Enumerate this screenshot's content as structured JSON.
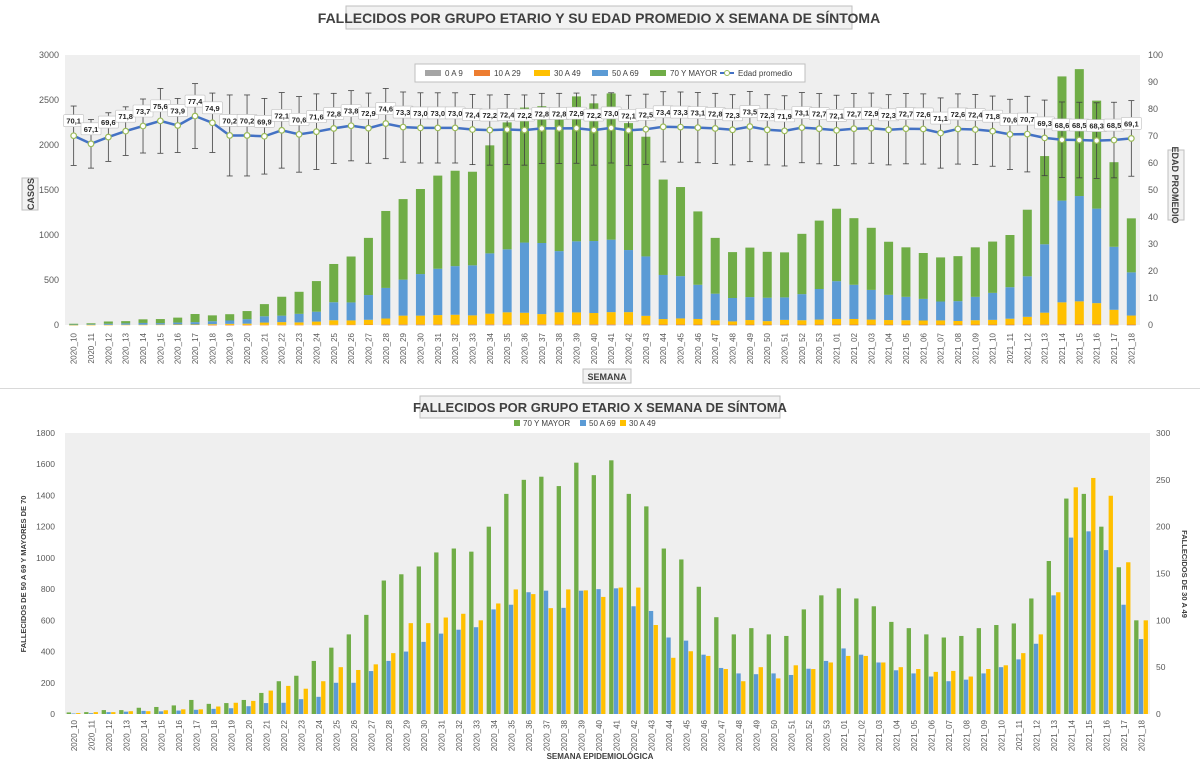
{
  "colors": {
    "age_0_9": "#a5a5a5",
    "age_10_29": "#ed7d31",
    "age_30_49": "#ffc000",
    "age_50_69": "#5b9bd5",
    "age_70_plus": "#70ad47",
    "avg_age_line": "#4472c4",
    "plot_bg": "#efefef"
  },
  "chart_data": [
    {
      "type": "bar",
      "stacked": true,
      "title": "FALLECIDOS POR GRUPO ETARIO Y SU EDAD PROMEDIO X SEMANA DE SÍNTOMA",
      "xlabel": "SEMANA",
      "ylabel": "CASOS",
      "y2label": "EDAD PROMEDIO",
      "ylim": [
        0,
        3000
      ],
      "y2lim": [
        0,
        100
      ],
      "yticks": [
        "0",
        "500",
        "1000",
        "1500",
        "2000",
        "2500",
        "3000"
      ],
      "y2ticks": [
        "0",
        "10",
        "20",
        "30",
        "40",
        "50",
        "60",
        "70",
        "80",
        "90",
        "100"
      ],
      "legend_position": "top",
      "grid": false,
      "categories": [
        "2020_10",
        "2020_11",
        "2020_12",
        "2020_13",
        "2020_14",
        "2020_15",
        "2020_16",
        "2020_17",
        "2020_18",
        "2020_19",
        "2020_20",
        "2020_21",
        "2020_22",
        "2020_23",
        "2020_24",
        "2020_25",
        "2020_26",
        "2020_27",
        "2020_28",
        "2020_29",
        "2020_30",
        "2020_31",
        "2020_32",
        "2020_33",
        "2020_34",
        "2020_35",
        "2020_36",
        "2020_37",
        "2020_38",
        "2020_39",
        "2020_40",
        "2020_41",
        "2020_42",
        "2020_43",
        "2020_44",
        "2020_45",
        "2020_46",
        "2020_47",
        "2020_48",
        "2020_49",
        "2020_50",
        "2020_51",
        "2020_52",
        "2020_53",
        "2021_01",
        "2021_02",
        "2021_03",
        "2021_04",
        "2021_05",
        "2021_06",
        "2021_07",
        "2021_08",
        "2021_09",
        "2021_10",
        "2021_11",
        "2021_12",
        "2021_13",
        "2021_14",
        "2021_15",
        "2021_16",
        "2021_17",
        "2021_18"
      ],
      "series": [
        {
          "name": "0 A 9",
          "color_key": "age_0_9",
          "values": [
            0,
            0,
            0,
            0,
            0,
            0,
            0,
            0,
            0,
            0,
            0,
            0,
            0,
            0,
            0,
            0,
            0,
            0,
            1,
            1,
            1,
            1,
            1,
            1,
            1,
            1,
            1,
            1,
            1,
            1,
            1,
            1,
            1,
            1,
            1,
            1,
            1,
            1,
            1,
            1,
            1,
            1,
            1,
            1,
            1,
            1,
            1,
            1,
            1,
            1,
            1,
            1,
            1,
            1,
            1,
            1,
            1,
            2,
            2,
            2,
            1,
            1
          ]
        },
        {
          "name": "10 A 29",
          "color_key": "age_10_29",
          "values": [
            0,
            0,
            0,
            0,
            0,
            0,
            0,
            0,
            1,
            1,
            1,
            2,
            2,
            2,
            3,
            3,
            4,
            5,
            6,
            6,
            6,
            6,
            6,
            6,
            7,
            7,
            7,
            7,
            7,
            7,
            7,
            7,
            7,
            6,
            5,
            5,
            4,
            4,
            4,
            4,
            4,
            4,
            4,
            4,
            4,
            4,
            4,
            4,
            4,
            4,
            4,
            4,
            4,
            4,
            4,
            5,
            6,
            8,
            9,
            8,
            6,
            4
          ]
        },
        {
          "name": "30 A 49",
          "color_key": "age_30_49",
          "values": [
            1,
            2,
            2,
            3,
            3,
            4,
            5,
            5,
            8,
            12,
            14,
            25,
            30,
            27,
            35,
            50,
            47,
            53,
            65,
            97,
            97,
            103,
            107,
            100,
            118,
            133,
            128,
            113,
            133,
            132,
            125,
            135,
            135,
            95,
            60,
            67,
            62,
            48,
            35,
            50,
            38,
            52,
            48,
            55,
            62,
            62,
            55,
            50,
            48,
            45,
            46,
            40,
            48,
            52,
            65,
            85,
            130,
            242,
            252,
            233,
            162,
            100
          ]
        },
        {
          "name": "50 A 69",
          "color_key": "age_50_69",
          "values": [
            3,
            5,
            12,
            15,
            20,
            17,
            22,
            27,
            33,
            37,
            50,
            70,
            72,
            95,
            110,
            200,
            200,
            275,
            340,
            400,
            462,
            515,
            540,
            556,
            670,
            700,
            780,
            790,
            680,
            790,
            800,
            805,
            690,
            660,
            490,
            470,
            380,
            295,
            260,
            255,
            260,
            250,
            290,
            340,
            420,
            380,
            330,
            280,
            260,
            240,
            210,
            220,
            260,
            300,
            350,
            450,
            760,
            1130,
            1170,
            1050,
            700,
            480
          ]
        },
        {
          "name": "70 Y MAYOR",
          "color_key": "age_70_plus",
          "values": [
            10,
            12,
            25,
            25,
            40,
            45,
            55,
            90,
            65,
            70,
            90,
            135,
            210,
            245,
            340,
            425,
            510,
            635,
            855,
            895,
            945,
            1035,
            1060,
            1040,
            1200,
            1410,
            1500,
            1520,
            1460,
            1610,
            1530,
            1625,
            1410,
            1330,
            1060,
            990,
            815,
            620,
            510,
            550,
            510,
            500,
            670,
            760,
            805,
            740,
            690,
            590,
            550,
            510,
            490,
            500,
            550,
            570,
            580,
            740,
            980,
            1380,
            1410,
            1200,
            940,
            600
          ]
        },
        {
          "name": "Edad promedio",
          "type": "line",
          "axis": "y2",
          "color_key": "avg_age_line",
          "values": [
            70.1,
            67.1,
            69.6,
            71.8,
            73.7,
            75.6,
            73.9,
            77.4,
            74.9,
            70.2,
            70.2,
            69.9,
            72.1,
            70.6,
            71.6,
            72.8,
            73.8,
            72.9,
            74.6,
            73.3,
            73.0,
            73.0,
            73.0,
            72.4,
            72.2,
            72.4,
            72.2,
            72.8,
            72.8,
            72.9,
            72.2,
            73.0,
            72.1,
            72.5,
            73.4,
            73.3,
            73.1,
            72.8,
            72.3,
            73.5,
            72.3,
            71.9,
            73.1,
            72.7,
            72.1,
            72.7,
            72.9,
            72.3,
            72.7,
            72.6,
            71.1,
            72.6,
            72.4,
            71.8,
            70.6,
            70.7,
            69.3,
            68.6,
            68.5,
            68.3,
            68.5,
            69.1
          ]
        }
      ],
      "data_labels_shown_on": "Edad promedio",
      "data_label_strings": [
        "70,1",
        "67,1",
        "69,6",
        "71,8",
        "73,7",
        "75,6",
        "73,9",
        "77,4",
        "74,9",
        "70,2",
        "70,2",
        "69,9",
        "72,1",
        "70,6",
        "71,6",
        "72,8",
        "73,8",
        "72,9",
        "74,6",
        "73,3",
        "73,0",
        "73,0",
        "73,0",
        "72,4",
        "72,2",
        "72,4",
        "72,2",
        "72,8",
        "72,8",
        "72,9",
        "72,2",
        "73,0",
        "72,1",
        "72,5",
        "73,4",
        "73,3",
        "73,1",
        "72,8",
        "72,3",
        "73,5",
        "72,3",
        "71,9",
        "73,1",
        "72,7",
        "72,1",
        "72,7",
        "72,9",
        "72,3",
        "72,7",
        "72,6",
        "71,1",
        "72,6",
        "72,4",
        "71,8",
        "70,6",
        "70,7",
        "69,3",
        "68,6",
        "68,5",
        "68,3",
        "68,5",
        "69,1"
      ],
      "error_bars_on": "Edad promedio",
      "error_bar_halfwidth_years": [
        11,
        9,
        9,
        9,
        10,
        12,
        10,
        12,
        11,
        15,
        15,
        14,
        14,
        14,
        14,
        13,
        13,
        13,
        13,
        13,
        13,
        13,
        13,
        13,
        13,
        13,
        13,
        13,
        13,
        13,
        13,
        13,
        13,
        13,
        13,
        13,
        13,
        13,
        13,
        13,
        13,
        13,
        13,
        13,
        13,
        13,
        13,
        13,
        13,
        13,
        13,
        13,
        13,
        13,
        13,
        14,
        14,
        14,
        14,
        14,
        14,
        14
      ]
    },
    {
      "type": "bar",
      "stacked": false,
      "title": "FALLECIDOS POR GRUPO ETARIO X SEMANA DE SÍNTOMA",
      "xlabel": "SEMANA EPIDEMIOLÓGICA",
      "ylabel": "FALLECIDOS DE 50 A 69 Y MAYORES DE 70",
      "y2label": "FALLECIDOS DE 30 A 49",
      "ylim": [
        0,
        1800
      ],
      "y2lim": [
        0,
        300
      ],
      "yticks": [
        "0",
        "200",
        "400",
        "600",
        "800",
        "1000",
        "1200",
        "1400",
        "1600",
        "1800"
      ],
      "y2ticks": [
        "0",
        "50",
        "100",
        "150",
        "200",
        "250",
        "300"
      ],
      "legend_position": "top",
      "grid": false,
      "categories": [
        "2020_10",
        "2020_11",
        "2020_12",
        "2020_13",
        "2020_14",
        "2020_15",
        "2020_16",
        "2020_17",
        "2020_18",
        "2020_19",
        "2020_20",
        "2020_21",
        "2020_22",
        "2020_23",
        "2020_24",
        "2020_25",
        "2020_26",
        "2020_27",
        "2020_28",
        "2020_29",
        "2020_30",
        "2020_31",
        "2020_32",
        "2020_33",
        "2020_34",
        "2020_35",
        "2020_36",
        "2020_37",
        "2020_38",
        "2020_39",
        "2020_40",
        "2020_41",
        "2020_42",
        "2020_43",
        "2020_44",
        "2020_45",
        "2020_46",
        "2020_47",
        "2020_48",
        "2020_49",
        "2020_50",
        "2020_51",
        "2020_52",
        "2020_53",
        "2021_01",
        "2021_02",
        "2021_03",
        "2021_04",
        "2021_05",
        "2021_06",
        "2021_07",
        "2021_08",
        "2021_09",
        "2021_10",
        "2021_11",
        "2021_12",
        "2021_13",
        "2021_14",
        "2021_15",
        "2021_16",
        "2021_17",
        "2021_18"
      ],
      "series": [
        {
          "name": "70 Y MAYOR",
          "color_key": "age_70_plus",
          "axis": "y",
          "values": [
            10,
            12,
            25,
            25,
            40,
            45,
            55,
            90,
            65,
            70,
            90,
            135,
            210,
            245,
            340,
            425,
            510,
            635,
            855,
            895,
            945,
            1035,
            1060,
            1040,
            1200,
            1410,
            1500,
            1520,
            1460,
            1610,
            1530,
            1625,
            1410,
            1330,
            1060,
            990,
            815,
            620,
            510,
            550,
            510,
            500,
            670,
            760,
            805,
            740,
            690,
            590,
            550,
            510,
            490,
            500,
            550,
            570,
            580,
            740,
            980,
            1380,
            1410,
            1200,
            940,
            600
          ]
        },
        {
          "name": "50 A 69",
          "color_key": "age_50_69",
          "axis": "y",
          "values": [
            3,
            5,
            12,
            15,
            20,
            17,
            22,
            27,
            33,
            37,
            50,
            70,
            72,
            95,
            110,
            200,
            200,
            275,
            340,
            400,
            462,
            515,
            540,
            556,
            670,
            700,
            780,
            790,
            680,
            790,
            800,
            805,
            690,
            660,
            490,
            470,
            380,
            295,
            260,
            255,
            260,
            250,
            290,
            340,
            420,
            380,
            330,
            280,
            260,
            240,
            210,
            220,
            260,
            300,
            350,
            450,
            760,
            1130,
            1170,
            1050,
            700,
            480
          ]
        },
        {
          "name": "30 A 49",
          "color_key": "age_30_49",
          "axis": "y2",
          "values": [
            1,
            2,
            2,
            3,
            3,
            4,
            5,
            5,
            8,
            12,
            14,
            25,
            30,
            27,
            35,
            50,
            47,
            53,
            65,
            97,
            97,
            103,
            107,
            100,
            118,
            133,
            128,
            113,
            133,
            132,
            125,
            135,
            135,
            95,
            60,
            67,
            62,
            48,
            35,
            50,
            38,
            52,
            48,
            55,
            62,
            62,
            55,
            50,
            48,
            45,
            46,
            40,
            48,
            52,
            65,
            85,
            130,
            242,
            252,
            233,
            162,
            100
          ]
        }
      ]
    }
  ]
}
